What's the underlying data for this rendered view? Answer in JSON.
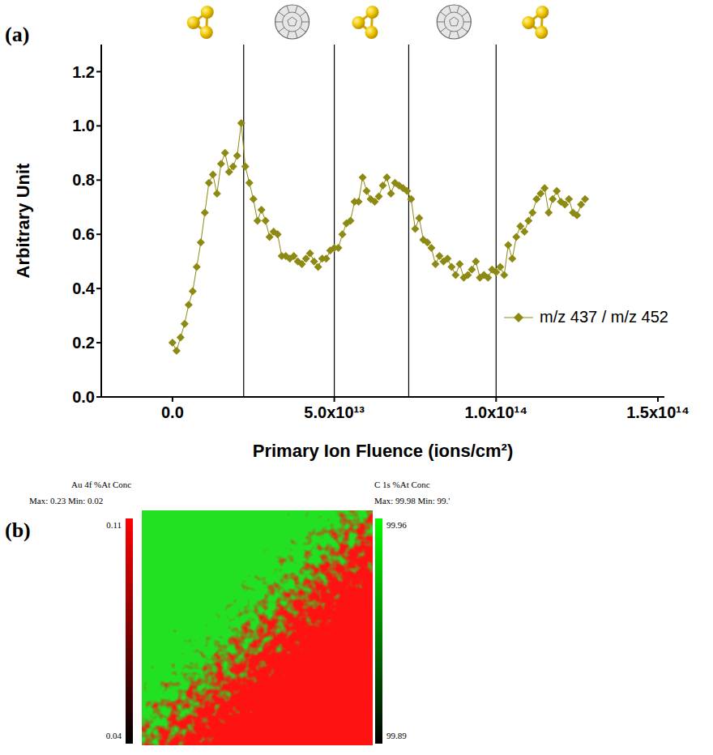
{
  "chart_data": {
    "type": "line",
    "panel_label": "(a)",
    "x_label": "Primary Ion Fluence (ions/cm²)",
    "y_label": "Arbitrary Unit",
    "grid": false,
    "legend": "right",
    "xlim": [
      -22000000000000.0,
      152000000000000.0
    ],
    "xticks": [
      {
        "value": 0,
        "label": "0.0"
      },
      {
        "value": 50000000000000.0,
        "label": "5.0x10¹³"
      },
      {
        "value": 100000000000000.0,
        "label": "1.0x10¹⁴"
      },
      {
        "value": 150000000000000.0,
        "label": "1.5x10¹⁴"
      }
    ],
    "ylim": [
      0,
      1.3
    ],
    "yticks": [
      {
        "value": 0,
        "label": "0.0"
      },
      0.2,
      0.4,
      0.6,
      0.8,
      {
        "value": 1,
        "label": "1.0"
      },
      1.2
    ],
    "vlines": [
      22000000000000.0,
      50000000000000.0,
      73000000000000.0,
      100000000000000.0
    ],
    "x": [
      0,
      1250000000000.0,
      2500000000000.0,
      3750000000000.0,
      5000000000000.0,
      6250000000000.0,
      7500000000000.0,
      8750000000000.0,
      10000000000000.0,
      11250000000000.0,
      12500000000000.0,
      13750000000000.0,
      15000000000000.0,
      16250000000000.0,
      17500000000000.0,
      18750000000000.0,
      20000000000000.0,
      21250000000000.0,
      22500000000000.0,
      23750000000000.0,
      25000000000000.0,
      26250000000000.0,
      27500000000000.0,
      28750000000000.0,
      30000000000000.0,
      31250000000000.0,
      32500000000000.0,
      33750000000000.0,
      35000000000000.0,
      36250000000000.0,
      37500000000000.0,
      38750000000000.0,
      40000000000000.0,
      41250000000000.0,
      42500000000000.0,
      43750000000000.0,
      45000000000000.0,
      46250000000000.0,
      47500000000000.0,
      48750000000000.0,
      50000000000000.0,
      51250000000000.0,
      52500000000000.0,
      53750000000000.0,
      55000000000000.0,
      56250000000000.0,
      57500000000000.0,
      58750000000000.0,
      60000000000000.0,
      61250000000000.0,
      62500000000000.0,
      63750000000000.0,
      65000000000000.0,
      66250000000000.0,
      67500000000000.0,
      68750000000000.0,
      70000000000000.0,
      71250000000000.0,
      72500000000000.0,
      73750000000000.0,
      75000000000000.0,
      76250000000000.0,
      77500000000000.0,
      78750000000000.0,
      80000000000000.0,
      81250000000000.0,
      82500000000000.0,
      83750000000000.0,
      85000000000000.0,
      86250000000000.0,
      87500000000000.0,
      88750000000000.0,
      90000000000000.0,
      91250000000000.0,
      92500000000000.0,
      93750000000000.0,
      95000000000000.0,
      96250000000000.0,
      97500000000000.0,
      98750000000000.0,
      100000000000000.0,
      101250000000000.0,
      102500000000000.0,
      103750000000000.0,
      105000000000000.0,
      106250000000000.0,
      107500000000000.0,
      108750000000000.0,
      110000000000000.0,
      111250000000000.0,
      112500000000000.0,
      113750000000000.0,
      115000000000000.0,
      116250000000000.0,
      117500000000000.0,
      118750000000000.0,
      120000000000000.0,
      121250000000000.0,
      122500000000000.0,
      123750000000000.0,
      125000000000000.0,
      126250000000000.0,
      127500000000000.0
    ],
    "series": [
      {
        "name": "m/z 437 / m/z 452",
        "color": "#8c8a12",
        "marker": "diamond",
        "line_style": "solid",
        "values": [
          0.2,
          0.17,
          0.22,
          0.27,
          0.34,
          0.39,
          0.48,
          0.57,
          0.68,
          0.79,
          0.82,
          0.75,
          0.86,
          0.9,
          0.83,
          0.85,
          0.89,
          1.01,
          0.85,
          0.79,
          0.73,
          0.65,
          0.69,
          0.65,
          0.59,
          0.61,
          0.6,
          0.52,
          0.52,
          0.51,
          0.52,
          0.5,
          0.49,
          0.51,
          0.53,
          0.5,
          0.48,
          0.51,
          0.51,
          0.54,
          0.55,
          0.55,
          0.6,
          0.64,
          0.65,
          0.72,
          0.72,
          0.81,
          0.76,
          0.73,
          0.72,
          0.74,
          0.78,
          0.81,
          0.75,
          0.79,
          0.78,
          0.77,
          0.76,
          0.73,
          0.62,
          0.66,
          0.58,
          0.57,
          0.55,
          0.49,
          0.52,
          0.5,
          0.51,
          0.48,
          0.45,
          0.49,
          0.44,
          0.45,
          0.47,
          0.5,
          0.44,
          0.45,
          0.44,
          0.47,
          0.46,
          0.48,
          0.45,
          0.56,
          0.51,
          0.59,
          0.63,
          0.61,
          0.65,
          0.68,
          0.73,
          0.75,
          0.77,
          0.68,
          0.73,
          0.76,
          0.72,
          0.71,
          0.73,
          0.68,
          0.67,
          0.71,
          0.73
        ]
      }
    ]
  },
  "image_map": {
    "panel_label": "(b)",
    "left_scale": {
      "title": "Au 4f %At Conc",
      "max_min": "Max: 0.23 Min: 0.02",
      "top": 0.11,
      "bottom": 0.04,
      "color": "#ff0000"
    },
    "right_scale": {
      "title": "C 1s %At Conc",
      "max_min": "Max: 99.98 Min: 99.'",
      "top": 99.96,
      "bottom": 99.89,
      "color": "#00ff00"
    }
  }
}
